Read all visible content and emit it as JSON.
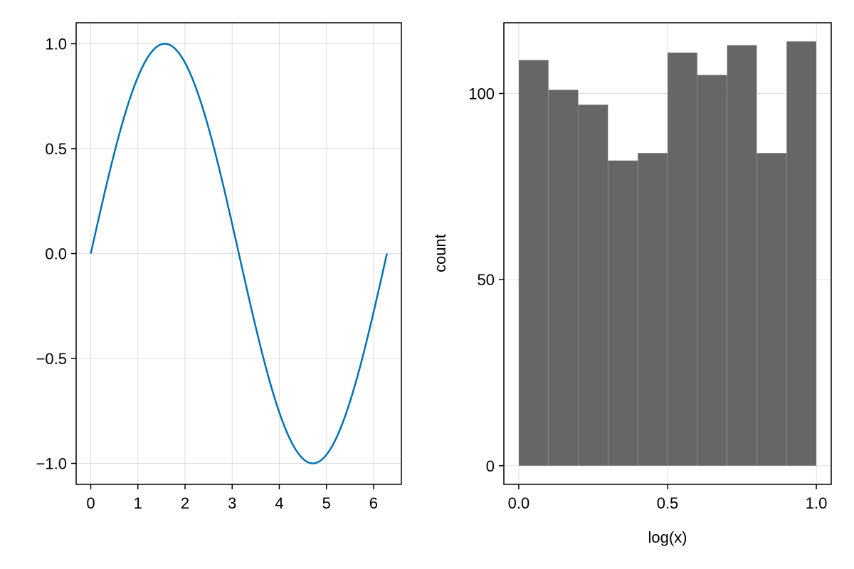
{
  "chart_data": [
    {
      "type": "line",
      "title": "",
      "xlabel": "",
      "ylabel": "",
      "xlim": [
        -0.31,
        6.59
      ],
      "ylim": [
        -1.1,
        1.1
      ],
      "xticks": [
        0,
        1,
        2,
        3,
        4,
        5,
        6
      ],
      "xtick_labels": [
        "0",
        "1",
        "2",
        "3",
        "4",
        "5",
        "6"
      ],
      "yticks": [
        -1.0,
        -0.5,
        0.0,
        0.5,
        1.0
      ],
      "ytick_labels": [
        "−1.0",
        "−0.5",
        "0.0",
        "0.5",
        "1.0"
      ],
      "grid": true,
      "series": [
        {
          "color": "#0072b2",
          "x": [
            0,
            0.2,
            0.4,
            0.6,
            0.8,
            1.0,
            1.2,
            1.4,
            1.5708,
            1.8,
            2.0,
            2.2,
            2.4,
            2.6,
            2.8,
            3.0,
            3.1416,
            3.4,
            3.6,
            3.8,
            4.0,
            4.2,
            4.4,
            4.7124,
            5.0,
            5.2,
            5.4,
            5.6,
            5.8,
            6.0,
            6.2832
          ],
          "y": [
            0,
            0.199,
            0.389,
            0.565,
            0.717,
            0.841,
            0.932,
            0.985,
            1.0,
            0.974,
            0.909,
            0.808,
            0.675,
            0.516,
            0.335,
            0.141,
            0.0,
            -0.256,
            -0.443,
            -0.612,
            -0.757,
            -0.872,
            -0.952,
            -1.0,
            -0.959,
            -0.883,
            -0.773,
            -0.631,
            -0.465,
            -0.279,
            0.0
          ]
        }
      ]
    },
    {
      "type": "bar",
      "title": "",
      "xlabel": "log(x)",
      "ylabel": "count",
      "xlim": [
        -0.05,
        1.05
      ],
      "ylim": [
        -5,
        119
      ],
      "xticks": [
        0.0,
        0.5,
        1.0
      ],
      "xtick_labels": [
        "0.0",
        "0.5",
        "1.0"
      ],
      "yticks": [
        0,
        50,
        100
      ],
      "ytick_labels": [
        "0",
        "50",
        "100"
      ],
      "grid": true,
      "bar_color": "#666666",
      "bin_edges": [
        0.0,
        0.1,
        0.2,
        0.3,
        0.4,
        0.5,
        0.6,
        0.7,
        0.8,
        0.9,
        1.0
      ],
      "values": [
        109,
        101,
        97,
        82,
        84,
        111,
        105,
        113,
        84,
        114
      ]
    }
  ]
}
